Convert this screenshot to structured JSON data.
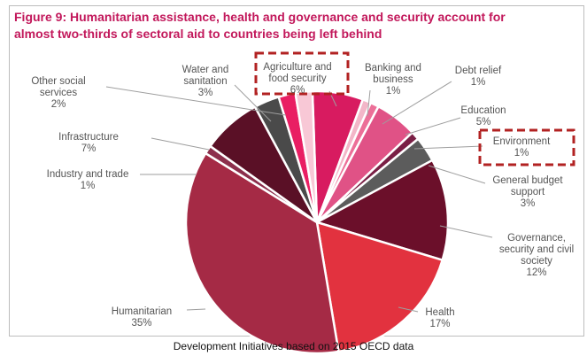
{
  "figure_title_line1": "Figure 9: Humanitarian assistance, health and governance and security account for",
  "figure_title_line2": "almost two-thirds of sectoral aid to countries being left behind",
  "source": "Development Initiatives based on 2015 OECD data",
  "colors": {
    "title": "#c2185b",
    "highlight": "#b22222"
  },
  "chart_data": {
    "type": "pie",
    "title": "Figure 9: Humanitarian assistance, health and governance and security account for almost two-thirds of sectoral aid to countries being left behind",
    "slices": [
      {
        "label": [
          "Agriculture and",
          "food security"
        ],
        "value_label": "6%",
        "value": 6,
        "color": "#d81b60",
        "highlighted": true
      },
      {
        "label": [
          "Banking and",
          "business"
        ],
        "value_label": "1%",
        "value": 1,
        "color": "#f3b6c8"
      },
      {
        "label": [
          "Debt relief"
        ],
        "value_label": "1%",
        "value": 1,
        "color": "#ec6f98"
      },
      {
        "label": [
          "Education"
        ],
        "value_label": "5%",
        "value": 5,
        "color": "#e05286"
      },
      {
        "label": [
          "Environment"
        ],
        "value_label": "1%",
        "value": 1,
        "color": "#7a1f45",
        "highlighted": true
      },
      {
        "label": [
          "General budget",
          "support"
        ],
        "value_label": "3%",
        "value": 3,
        "color": "#5c5c5c"
      },
      {
        "label": [
          "Governance,",
          "security and civil",
          "society"
        ],
        "value_label": "12%",
        "value": 12,
        "color": "#6b0f2a"
      },
      {
        "label": [
          "Health"
        ],
        "value_label": "17%",
        "value": 17,
        "color": "#e2323f"
      },
      {
        "label": [
          "Humanitarian"
        ],
        "value_label": "35%",
        "value": 35,
        "color": "#a52a45"
      },
      {
        "label": [
          "Industry and trade"
        ],
        "value_label": "1%",
        "value": 1,
        "color": "#8c2f4c"
      },
      {
        "label": [
          "Infrastructure"
        ],
        "value_label": "7%",
        "value": 7,
        "color": "#5a1026"
      },
      {
        "label": [
          "Water and",
          "sanitation"
        ],
        "value_label": "3%",
        "value": 3,
        "color": "#4a4a4a"
      },
      {
        "label": [
          "Other social",
          "services"
        ],
        "value_label": "2%",
        "value": 2,
        "color": "#e91e63"
      },
      {
        "label": [
          ""
        ],
        "value_label": "",
        "value": 2,
        "color": "#f8c8d6"
      }
    ]
  }
}
